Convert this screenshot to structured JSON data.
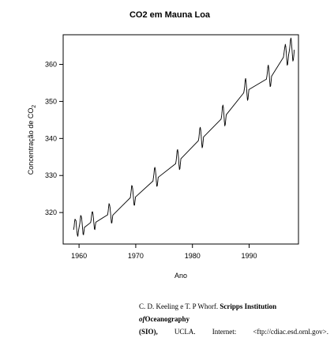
{
  "chart_data": {
    "type": "line",
    "title": "CO2 em Mauna Loa",
    "xlabel": "Ano",
    "ylabel": "Concentração de CO",
    "ylabel_subscript": "2",
    "xlim": [
      1957.2,
      1998.7
    ],
    "ylim": [
      311.5,
      368
    ],
    "xticks": [
      1960,
      1970,
      1980,
      1990
    ],
    "yticks": [
      320,
      330,
      340,
      350,
      360
    ],
    "grid": false,
    "series": [
      {
        "x": [
          1959.04,
          1959.13,
          1959.21,
          1959.29,
          1959.38,
          1959.46,
          1959.54,
          1959.63,
          1959.71,
          1959.79,
          1959.88,
          1959.96,
          1960.04,
          1960.13,
          1960.21,
          1960.29,
          1960.38,
          1960.46,
          1960.54,
          1960.63,
          1960.71,
          1960.79,
          1960.88,
          1960.96,
          1962.04,
          1962.13,
          1962.21,
          1962.29,
          1962.38,
          1962.46,
          1962.54,
          1962.63,
          1962.71,
          1962.79,
          1962.88,
          1962.96,
          1965.04,
          1965.13,
          1965.21,
          1965.29,
          1965.38,
          1965.46,
          1965.54,
          1965.63,
          1965.71,
          1965.79,
          1965.88,
          1965.96,
          1969.04,
          1969.13,
          1969.21,
          1969.29,
          1969.38,
          1969.46,
          1969.54,
          1969.63,
          1969.71,
          1969.79,
          1969.88,
          1969.96,
          1973.04,
          1973.13,
          1973.21,
          1973.29,
          1973.38,
          1973.46,
          1973.54,
          1973.63,
          1973.71,
          1973.79,
          1973.88,
          1973.96,
          1977.04,
          1977.13,
          1977.21,
          1977.29,
          1977.38,
          1977.46,
          1977.54,
          1977.63,
          1977.71,
          1977.79,
          1977.88,
          1977.96,
          1981.04,
          1981.13,
          1981.21,
          1981.29,
          1981.38,
          1981.46,
          1981.54,
          1981.63,
          1981.71,
          1981.79,
          1981.88,
          1981.96,
          1985.04,
          1985.13,
          1985.21,
          1985.29,
          1985.38,
          1985.46,
          1985.54,
          1985.63,
          1985.71,
          1985.79,
          1985.88,
          1985.96,
          1989.04,
          1989.13,
          1989.21,
          1989.29,
          1989.38,
          1989.46,
          1989.54,
          1989.63,
          1989.71,
          1989.79,
          1989.88,
          1989.96,
          1993.04,
          1993.13,
          1993.21,
          1993.29,
          1993.38,
          1993.46,
          1993.54,
          1993.63,
          1993.71,
          1993.79,
          1993.88,
          1993.96,
          1996.04,
          1996.13,
          1996.21,
          1996.29,
          1996.38,
          1996.46,
          1996.54,
          1996.63,
          1996.71,
          1996.79,
          1996.88,
          1996.96,
          1997.04,
          1997.13,
          1997.21,
          1997.29,
          1997.38,
          1997.46,
          1997.54,
          1997.63,
          1997.71,
          1997.79,
          1997.88,
          1997.96
        ],
        "y": [
          315.4,
          316.2,
          317.5,
          318.2,
          318.0,
          317.8,
          316.2,
          314.8,
          313.9,
          313.6,
          314.8,
          315.6,
          316.3,
          317.0,
          318.1,
          319.2,
          319.0,
          318.4,
          317.2,
          315.6,
          314.2,
          314.0,
          315.1,
          316.0,
          317.3,
          318.0,
          319.2,
          320.1,
          320.2,
          319.6,
          318.4,
          316.9,
          315.6,
          315.4,
          316.6,
          317.4,
          319.4,
          320.3,
          321.4,
          322.4,
          322.1,
          321.4,
          320.1,
          318.6,
          317.2,
          317.2,
          318.4,
          319.3,
          324.0,
          325.0,
          326.1,
          327.3,
          327.1,
          326.4,
          325.1,
          323.2,
          322.0,
          322.0,
          323.2,
          324.2,
          328.5,
          329.5,
          330.4,
          331.8,
          332.2,
          331.6,
          330.3,
          328.5,
          327.1,
          327.2,
          328.3,
          329.5,
          333.2,
          334.0,
          335.2,
          336.6,
          337.0,
          336.3,
          334.9,
          332.8,
          331.6,
          331.9,
          333.3,
          334.5,
          339.4,
          340.1,
          341.3,
          342.6,
          343.0,
          342.3,
          340.8,
          338.8,
          337.5,
          337.8,
          339.2,
          340.4,
          345.2,
          345.9,
          347.0,
          348.5,
          349.0,
          348.3,
          346.7,
          344.6,
          343.4,
          343.8,
          345.2,
          346.4,
          352.3,
          353.1,
          354.0,
          355.6,
          356.2,
          355.4,
          353.8,
          351.7,
          350.3,
          350.6,
          352.0,
          353.2,
          356.0,
          356.8,
          357.8,
          359.2,
          359.8,
          359.0,
          357.4,
          355.4,
          354.0,
          354.2,
          355.6,
          356.8,
          361.9,
          362.8,
          363.8,
          364.6,
          365.4,
          364.8,
          363.4,
          361.4,
          359.8,
          360.0,
          361.3,
          362.6,
          363.2,
          364.1,
          365.2,
          366.6,
          367.1,
          366.0,
          364.4,
          362.4,
          360.9,
          361.2,
          362.4,
          363.9
        ]
      }
    ]
  },
  "caption": {
    "line1_authors": "C. D. Keeling e T. P Whorf.",
    "line1_institution": "Scripps Institution",
    "line1_of": "of",
    "line1_end": "Oceanography",
    "line2_sio": "(SIO),",
    "line2_ucla": "UCLA.",
    "line2_internet": "Internet:",
    "line2_url": "<ftp://cdiac.esd.ornl.gov>."
  }
}
